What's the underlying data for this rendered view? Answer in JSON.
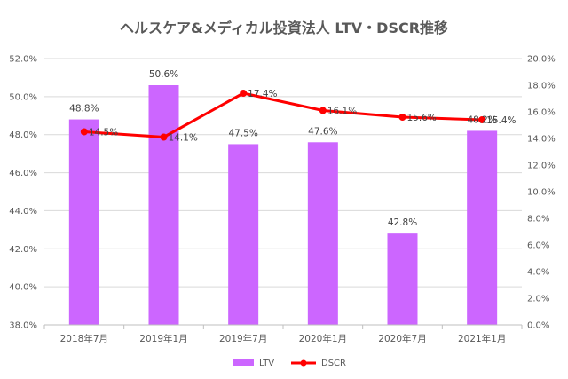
{
  "chart_data": {
    "type": "bar",
    "title": "ヘルスケア&メディカル投資法人 LTV・DSCR推移",
    "categories": [
      "2018年7月",
      "2019年1月",
      "2019年7月",
      "2020年1月",
      "2020年7月",
      "2021年1月"
    ],
    "series": [
      {
        "name": "LTV",
        "type": "bar",
        "axis": "left",
        "color": "#cc66ff",
        "values": [
          48.8,
          50.6,
          47.5,
          47.6,
          42.8,
          48.2
        ],
        "labels": [
          "48.8%",
          "50.6%",
          "47.5%",
          "47.6%",
          "42.8%",
          "48.2%"
        ]
      },
      {
        "name": "DSCR",
        "type": "line",
        "axis": "right",
        "color": "#ff0000",
        "values": [
          14.5,
          14.1,
          17.4,
          16.1,
          15.6,
          15.4
        ],
        "labels": [
          "14.5%",
          "14.1%",
          "17.4%",
          "16.1%",
          "15.6%",
          "15.4%"
        ]
      }
    ],
    "y_left": {
      "lim": [
        38,
        52
      ],
      "ticks": [
        "38.0%",
        "40.0%",
        "42.0%",
        "44.0%",
        "46.0%",
        "48.0%",
        "50.0%",
        "52.0%"
      ]
    },
    "y_right": {
      "lim": [
        0,
        20
      ],
      "ticks": [
        "0.0%",
        "2.0%",
        "4.0%",
        "6.0%",
        "8.0%",
        "10.0%",
        "12.0%",
        "14.0%",
        "16.0%",
        "18.0%",
        "20.0%"
      ]
    },
    "grid": true,
    "legend": "bottom"
  }
}
